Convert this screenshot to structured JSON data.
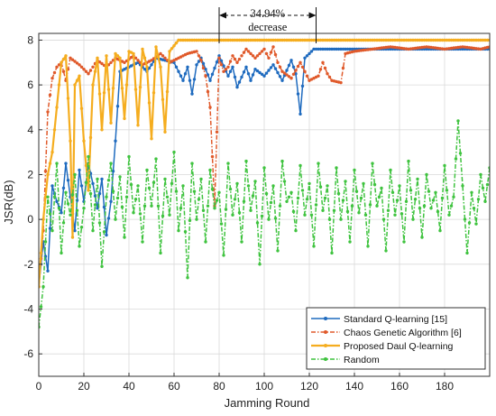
{
  "chart_data": {
    "type": "line",
    "title": "",
    "xlabel": "Jamming Round",
    "ylabel": "JSR(dB)",
    "xlim": [
      0,
      200
    ],
    "ylim": [
      -7,
      8.3
    ],
    "x_ticks": [
      0,
      20,
      40,
      60,
      80,
      100,
      120,
      140,
      160,
      180
    ],
    "y_ticks": [
      -6,
      -4,
      -2,
      0,
      2,
      4,
      6,
      8
    ],
    "grid": true,
    "legend_position": "bottom-right",
    "annotation": {
      "line1": "34.94%",
      "line2": "decrease",
      "x_start": 80,
      "x_end": 123
    },
    "series": [
      {
        "name": "Standard Q-learning [15]",
        "color": "#1f6bbf",
        "style": "solid",
        "points": [
          [
            0,
            -3
          ],
          [
            2,
            -1
          ],
          [
            4,
            -2.3
          ],
          [
            6,
            1.5
          ],
          [
            8,
            0.8
          ],
          [
            10,
            0.3
          ],
          [
            12,
            2.5
          ],
          [
            14,
            1.0
          ],
          [
            16,
            -0.5
          ],
          [
            18,
            2.2
          ],
          [
            20,
            0.8
          ],
          [
            22,
            2.5
          ],
          [
            24,
            1.6
          ],
          [
            26,
            0.5
          ],
          [
            28,
            1.8
          ],
          [
            30,
            -0.7
          ],
          [
            32,
            0.8
          ],
          [
            34,
            3.5
          ],
          [
            36,
            6.6
          ],
          [
            40,
            6.8
          ],
          [
            44,
            7.0
          ],
          [
            48,
            6.6
          ],
          [
            52,
            7.2
          ],
          [
            56,
            7.1
          ],
          [
            60,
            7.0
          ],
          [
            64,
            6.2
          ],
          [
            66,
            6.8
          ],
          [
            68,
            5.6
          ],
          [
            70,
            6.9
          ],
          [
            72,
            7.2
          ],
          [
            76,
            6.2
          ],
          [
            80,
            7.3
          ],
          [
            84,
            6.4
          ],
          [
            86,
            6.8
          ],
          [
            88,
            5.9
          ],
          [
            92,
            6.8
          ],
          [
            94,
            6.2
          ],
          [
            96,
            6.7
          ],
          [
            100,
            6.4
          ],
          [
            104,
            6.9
          ],
          [
            108,
            6.2
          ],
          [
            112,
            7.1
          ],
          [
            114,
            6.5
          ],
          [
            116,
            4.7
          ],
          [
            118,
            7.2
          ],
          [
            122,
            7.6
          ],
          [
            200,
            7.6
          ]
        ]
      },
      {
        "name": "Chaos Genetic Algorithm [6]",
        "color": "#e05a2b",
        "style": "dashdot",
        "points": [
          [
            0,
            -3
          ],
          [
            2,
            -0.5
          ],
          [
            4,
            4.8
          ],
          [
            6,
            6.3
          ],
          [
            8,
            6.8
          ],
          [
            10,
            7.0
          ],
          [
            12,
            6.2
          ],
          [
            14,
            7.2
          ],
          [
            18,
            6.9
          ],
          [
            22,
            6.5
          ],
          [
            26,
            7.1
          ],
          [
            30,
            6.8
          ],
          [
            34,
            7.2
          ],
          [
            38,
            7.0
          ],
          [
            42,
            7.3
          ],
          [
            46,
            6.9
          ],
          [
            50,
            7.1
          ],
          [
            54,
            7.4
          ],
          [
            58,
            7.0
          ],
          [
            62,
            7.2
          ],
          [
            66,
            7.4
          ],
          [
            70,
            7.5
          ],
          [
            72,
            7.1
          ],
          [
            74,
            6.4
          ],
          [
            76,
            5.0
          ],
          [
            77,
            2.8
          ],
          [
            78,
            0.6
          ],
          [
            80,
            7.2
          ],
          [
            82,
            6.6
          ],
          [
            84,
            6.8
          ],
          [
            86,
            7.3
          ],
          [
            88,
            7.0
          ],
          [
            92,
            7.6
          ],
          [
            96,
            7.2
          ],
          [
            100,
            7.6
          ],
          [
            102,
            7.2
          ],
          [
            104,
            7.7
          ],
          [
            106,
            7.0
          ],
          [
            108,
            6.6
          ],
          [
            112,
            6.3
          ],
          [
            116,
            7.0
          ],
          [
            118,
            6.6
          ],
          [
            120,
            6.2
          ],
          [
            124,
            6.4
          ],
          [
            126,
            7.0
          ],
          [
            128,
            6.5
          ],
          [
            130,
            6.2
          ],
          [
            134,
            6.1
          ],
          [
            136,
            7.4
          ],
          [
            140,
            7.5
          ],
          [
            148,
            7.6
          ],
          [
            156,
            7.7
          ],
          [
            164,
            7.6
          ],
          [
            172,
            7.7
          ],
          [
            180,
            7.6
          ],
          [
            188,
            7.7
          ],
          [
            196,
            7.6
          ],
          [
            200,
            7.7
          ]
        ]
      },
      {
        "name": "Proposed Daul Q-learning",
        "color": "#f5ad1f",
        "style": "solid",
        "points": [
          [
            0,
            -3
          ],
          [
            2,
            0
          ],
          [
            4,
            2
          ],
          [
            6,
            3.0
          ],
          [
            8,
            5.0
          ],
          [
            10,
            7.0
          ],
          [
            12,
            7.3
          ],
          [
            14,
            3.5
          ],
          [
            15,
            -0.8
          ],
          [
            16,
            6.0
          ],
          [
            18,
            6.4
          ],
          [
            20,
            3.5
          ],
          [
            22,
            1.3
          ],
          [
            24,
            6.0
          ],
          [
            26,
            7.2
          ],
          [
            28,
            4.0
          ],
          [
            30,
            7.3
          ],
          [
            32,
            4.3
          ],
          [
            34,
            7.4
          ],
          [
            36,
            7.2
          ],
          [
            38,
            4.5
          ],
          [
            40,
            7.5
          ],
          [
            42,
            7.4
          ],
          [
            44,
            4.2
          ],
          [
            46,
            7.6
          ],
          [
            48,
            6.8
          ],
          [
            50,
            3.6
          ],
          [
            52,
            7.7
          ],
          [
            54,
            6.8
          ],
          [
            56,
            3.9
          ],
          [
            58,
            7.5
          ],
          [
            62,
            8.0
          ],
          [
            200,
            8.0
          ]
        ]
      },
      {
        "name": "Random",
        "color": "#3fc33f",
        "style": "dashdot",
        "points": [
          [
            0,
            -4.8
          ],
          [
            2,
            -3
          ],
          [
            4,
            1
          ],
          [
            6,
            -0.5
          ],
          [
            8,
            2.5
          ],
          [
            10,
            -1.5
          ],
          [
            12,
            1.2
          ],
          [
            14,
            0.2
          ],
          [
            16,
            2.0
          ],
          [
            18,
            -1.2
          ],
          [
            20,
            0.5
          ],
          [
            22,
            2.8
          ],
          [
            24,
            -0.5
          ],
          [
            26,
            1.8
          ],
          [
            28,
            -2.1
          ],
          [
            30,
            1.0
          ],
          [
            32,
            2.5
          ],
          [
            34,
            0.0
          ],
          [
            36,
            1.9
          ],
          [
            38,
            -0.8
          ],
          [
            40,
            2.8
          ],
          [
            42,
            0.3
          ],
          [
            44,
            1.5
          ],
          [
            46,
            -1.0
          ],
          [
            48,
            2.2
          ],
          [
            50,
            0.6
          ],
          [
            52,
            2.7
          ],
          [
            54,
            -1.5
          ],
          [
            56,
            1.8
          ],
          [
            58,
            0.2
          ],
          [
            60,
            3.0
          ],
          [
            62,
            -0.5
          ],
          [
            64,
            1.5
          ],
          [
            66,
            -2.6
          ],
          [
            68,
            2.5
          ],
          [
            70,
            0.0
          ],
          [
            72,
            1.8
          ],
          [
            74,
            -1.0
          ],
          [
            76,
            2.2
          ],
          [
            78,
            0.5
          ],
          [
            80,
            1.2
          ],
          [
            82,
            -1.6
          ],
          [
            84,
            2.5
          ],
          [
            86,
            0.2
          ],
          [
            88,
            1.6
          ],
          [
            90,
            -1.0
          ],
          [
            92,
            2.6
          ],
          [
            94,
            0.4
          ],
          [
            96,
            1.7
          ],
          [
            98,
            -2.0
          ],
          [
            100,
            2.3
          ],
          [
            102,
            0.0
          ],
          [
            104,
            1.5
          ],
          [
            106,
            -1.4
          ],
          [
            108,
            2.6
          ],
          [
            110,
            0.8
          ],
          [
            112,
            1.2
          ],
          [
            114,
            -0.5
          ],
          [
            116,
            2.4
          ],
          [
            118,
            0.2
          ],
          [
            120,
            1.6
          ],
          [
            122,
            -1.2
          ],
          [
            124,
            2.5
          ],
          [
            126,
            0.4
          ],
          [
            128,
            1.5
          ],
          [
            130,
            -1.5
          ],
          [
            132,
            2.3
          ],
          [
            134,
            0.0
          ],
          [
            136,
            1.7
          ],
          [
            138,
            -1.0
          ],
          [
            140,
            2.2
          ],
          [
            142,
            0.3
          ],
          [
            144,
            1.6
          ],
          [
            146,
            -1.2
          ],
          [
            148,
            2.5
          ],
          [
            150,
            0.6
          ],
          [
            152,
            1.4
          ],
          [
            154,
            -1.4
          ],
          [
            156,
            2.2
          ],
          [
            158,
            0.2
          ],
          [
            160,
            1.5
          ],
          [
            162,
            -1.0
          ],
          [
            164,
            2.6
          ],
          [
            166,
            0.0
          ],
          [
            168,
            1.8
          ],
          [
            170,
            -0.8
          ],
          [
            172,
            2.0
          ],
          [
            174,
            0.5
          ],
          [
            176,
            1.2
          ],
          [
            178,
            -0.5
          ],
          [
            180,
            2.4
          ],
          [
            182,
            0.2
          ],
          [
            184,
            1.0
          ],
          [
            186,
            4.4
          ],
          [
            188,
            1.5
          ],
          [
            190,
            -1.5
          ],
          [
            192,
            1.2
          ],
          [
            194,
            -0.2
          ],
          [
            196,
            2.0
          ],
          [
            198,
            0.8
          ],
          [
            200,
            2.3
          ]
        ]
      }
    ]
  }
}
